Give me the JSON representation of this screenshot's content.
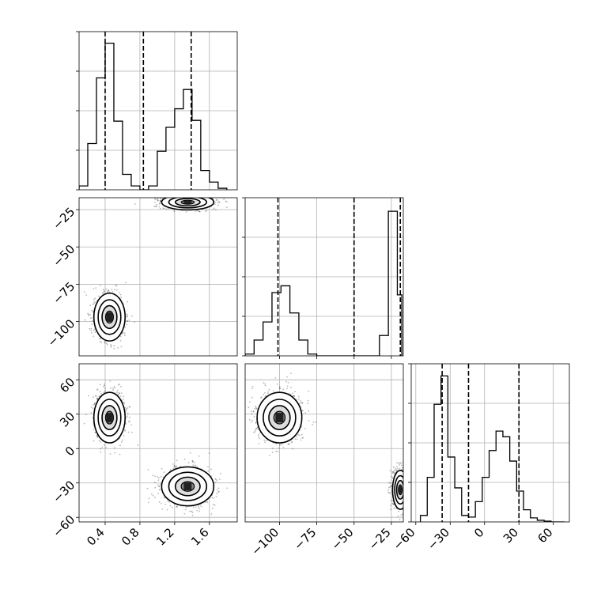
{
  "chart_data": {
    "type": "corner",
    "title": "",
    "parameters": [
      {
        "ticks": [
          0.4,
          0.8,
          1.2,
          1.6
        ],
        "tick_labels": [
          "0.4",
          "0.8",
          "1.2",
          "1.6"
        ],
        "range": [
          0.1,
          1.92
        ]
      },
      {
        "ticks": [
          -100,
          -75,
          -50,
          -25
        ],
        "tick_labels": [
          "−100",
          "−75",
          "−50",
          "−25"
        ],
        "range": [
          -123,
          -17
        ]
      },
      {
        "ticks": [
          -60,
          -30,
          0,
          30,
          60
        ],
        "tick_labels": [
          "−60",
          "−30",
          "0",
          "30",
          "60"
        ],
        "range": [
          -64,
          74
        ]
      }
    ],
    "grid": true,
    "histograms": [
      {
        "param": 0,
        "edges": [
          0.1,
          0.2,
          0.3,
          0.4,
          0.5,
          0.6,
          0.7,
          0.8,
          0.9,
          1.0,
          1.1,
          1.2,
          1.3,
          1.4,
          1.5,
          1.6,
          1.7,
          1.8
        ],
        "counts": [
          0.05,
          0.6,
          1.45,
          1.9,
          0.89,
          0.2,
          0.05,
          0.0,
          0.05,
          0.5,
          0.81,
          1.05,
          1.3,
          0.9,
          0.25,
          0.1,
          0.02
        ],
        "ylim": [
          0,
          2.05
        ],
        "quantiles": [
          0.4,
          0.84,
          1.39
        ]
      },
      {
        "param": 1,
        "edges": [
          -123,
          -117,
          -111,
          -105,
          -99,
          -93,
          -87,
          -81,
          -75,
          -69,
          -63,
          -57,
          -51,
          -45,
          -39,
          -33,
          -27,
          -21,
          -18
        ],
        "counts": [
          0.04,
          0.35,
          0.75,
          1.4,
          1.55,
          0.95,
          0.35,
          0.04,
          0,
          0,
          0,
          0,
          0,
          0,
          0,
          0.45,
          3.2,
          1.35
        ],
        "ylim": [
          0,
          3.5
        ],
        "quantiles": [
          -101,
          -50,
          -19
        ]
      },
      {
        "param": 2,
        "edges": [
          -56,
          -50,
          -44,
          -38,
          -32,
          -26,
          -20,
          -14,
          -8,
          -2,
          4,
          10,
          16,
          22,
          28,
          34,
          40,
          46,
          52,
          58,
          64,
          70
        ],
        "counts": [
          0.08,
          0.55,
          1.45,
          1.8,
          0.8,
          0.42,
          0.08,
          0.06,
          0.25,
          0.55,
          0.88,
          1.12,
          1.05,
          0.75,
          0.38,
          0.15,
          0.05,
          0.02,
          0.01,
          0,
          0
        ],
        "ylim": [
          0,
          1.95
        ],
        "quantiles": [
          -37,
          -14,
          30
        ]
      }
    ],
    "scatter_panels": [
      {
        "x_param": 0,
        "y_param": 1,
        "clusters": [
          {
            "mean": [
              1.35,
              -20
            ],
            "sd": [
              0.15,
              2.6
            ],
            "n": 800
          },
          {
            "mean": [
              0.45,
              -97
            ],
            "sd": [
              0.09,
              8.0
            ],
            "n": 800
          }
        ]
      },
      {
        "x_param": 0,
        "y_param": 2,
        "clusters": [
          {
            "mean": [
              0.45,
              27
            ],
            "sd": [
              0.09,
              11.0
            ],
            "n": 800
          },
          {
            "mean": [
              1.35,
              -33
            ],
            "sd": [
              0.15,
              8.5
            ],
            "n": 800
          }
        ]
      },
      {
        "x_param": 1,
        "y_param": 2,
        "clusters": [
          {
            "mean": [
              -100,
              27
            ],
            "sd": [
              7.5,
              11.0
            ],
            "n": 800
          },
          {
            "mean": [
              -19,
              -36
            ],
            "sd": [
              2.6,
              8.5
            ],
            "n": 800
          }
        ]
      }
    ]
  }
}
